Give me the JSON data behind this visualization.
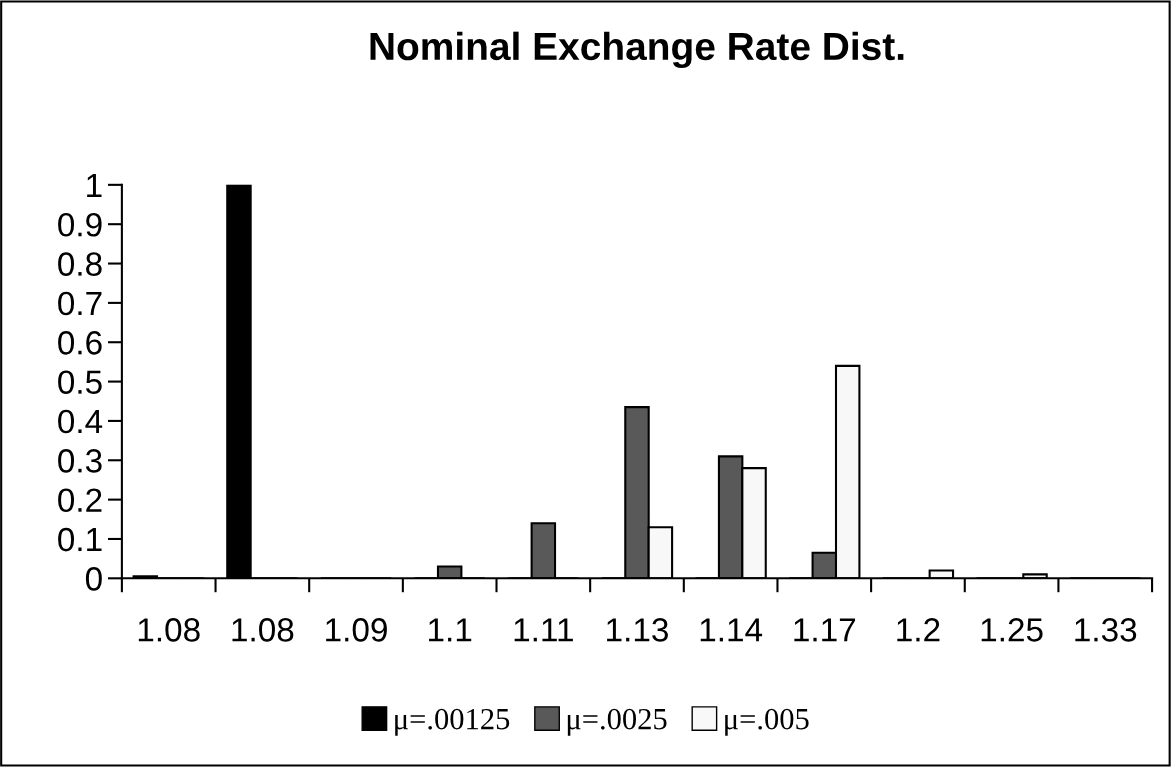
{
  "chart_data": {
    "type": "bar",
    "title": "Nominal Exchange Rate Dist.",
    "categories": [
      "1.08",
      "1.08",
      "1.09",
      "1.1",
      "1.11",
      "1.13",
      "1.14",
      "1.17",
      "1.2",
      "1.25",
      "1.33"
    ],
    "series": [
      {
        "name": "μ=.00125",
        "color": "#000000",
        "values": [
          0.005,
          1,
          0,
          0,
          0,
          0,
          0,
          0,
          0,
          0,
          0
        ]
      },
      {
        "name": "μ=.0025",
        "color": "#595959",
        "values": [
          0,
          0,
          0,
          0.03,
          0.14,
          0.435,
          0.31,
          0.065,
          0,
          0,
          0
        ]
      },
      {
        "name": "μ=.005",
        "color": "#f8f8f8",
        "values": [
          0,
          0,
          0,
          0,
          0,
          0.13,
          0.28,
          0.54,
          0.02,
          0.01,
          0
        ]
      }
    ],
    "ylim": [
      0,
      1
    ],
    "yticks": [
      0,
      0.1,
      0.2,
      0.3,
      0.4,
      0.5,
      0.6,
      0.7,
      0.8,
      0.9,
      1
    ],
    "grid": false,
    "legend": "bottom"
  }
}
